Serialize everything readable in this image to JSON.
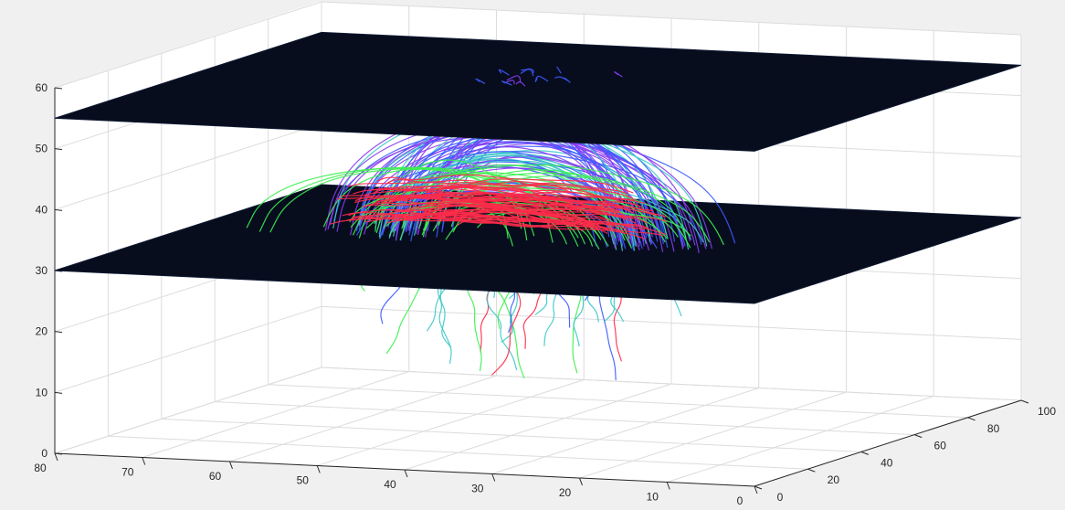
{
  "chart_data": {
    "type": "3d-streamlines",
    "title": "",
    "xlabel": "",
    "ylabel": "",
    "zlabel": "",
    "axes": {
      "x": {
        "range": [
          0,
          80
        ],
        "ticks": [
          0,
          10,
          20,
          30,
          40,
          50,
          60,
          70,
          80
        ]
      },
      "y": {
        "range": [
          0,
          100
        ],
        "ticks": [
          0,
          20,
          40,
          60,
          80,
          100
        ]
      },
      "z": {
        "range": [
          0,
          60
        ],
        "ticks": [
          0,
          10,
          20,
          30,
          40,
          50,
          60
        ]
      }
    },
    "grid": true,
    "slice_planes": [
      {
        "z": 30,
        "color": "#080d1e"
      },
      {
        "z": 55,
        "color": "#080d1e"
      }
    ],
    "fiber_colors": [
      "#ff2a4a",
      "#3cf050",
      "#3c5aff",
      "#8a3cf0",
      "#3cc8c8"
    ],
    "fiber_bundle_center": {
      "x": 42,
      "y": 50,
      "z": 38
    }
  }
}
